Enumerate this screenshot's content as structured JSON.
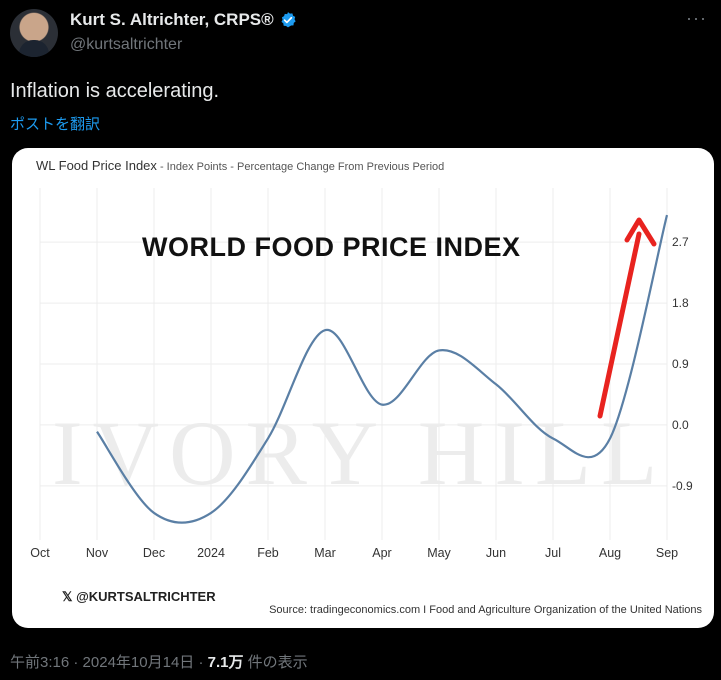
{
  "tweet": {
    "display_name": "Kurt S. Altrichter, CRPS®",
    "handle": "@kurtsaltrichter",
    "text": "Inflation is accelerating.",
    "translate_label": "ポストを翻訳",
    "more_label": "···",
    "time": "午前3:16",
    "date": "2024年10月14日",
    "separator": "·",
    "views_count": "7.1万",
    "views_label": "件の表示",
    "verified_color": "#1d9bf0"
  },
  "card": {
    "title": "WL Food Price Index",
    "subtitle": " - Index Points - Percentage Change From Previous Period",
    "headline": "WORLD FOOD PRICE INDEX",
    "watermark": "IVORY HILL",
    "brand": "𝕏 @KURTSALTRICHTER",
    "source": "Source: tradingeconomics.com I Food and Agriculture Organization of the United Nations"
  },
  "chart_data": {
    "type": "line",
    "title": "WL Food Price Index",
    "x_ticks": [
      "Oct",
      "Nov",
      "Dec",
      "2024",
      "Feb",
      "Mar",
      "Apr",
      "May",
      "Jun",
      "Jul",
      "Aug",
      "Sep"
    ],
    "y_ticks": [
      "-0.9",
      "0.0",
      "0.9",
      "1.8",
      "2.7"
    ],
    "ylim": [
      -1.7,
      3.5
    ],
    "series": [
      {
        "values": [
          {
            "x": "Nov",
            "y": -0.1
          },
          {
            "x": "Dec",
            "y": -1.3
          },
          {
            "x": "2024",
            "y": -1.3
          },
          {
            "x": "Feb",
            "y": -0.2
          },
          {
            "x": "Mar",
            "y": 1.4
          },
          {
            "x": "Apr",
            "y": 0.3
          },
          {
            "x": "May",
            "y": 1.1
          },
          {
            "x": "Jun",
            "y": 0.6
          },
          {
            "x": "Jul",
            "y": -0.2
          },
          {
            "x": "Aug",
            "y": -0.2
          },
          {
            "x": "Sep",
            "y": 3.1
          }
        ],
        "color": "#5a7fa5"
      }
    ],
    "arrow_color": "#e8231f",
    "grid": true
  }
}
